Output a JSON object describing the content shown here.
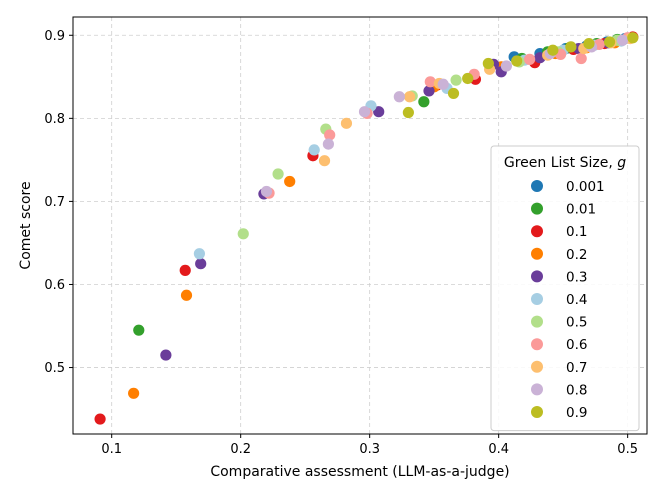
{
  "chart_data": {
    "type": "scatter",
    "xlabel": "Comparative assessment (LLM-as-a-judge)",
    "ylabel": "Comet score",
    "xlim": [
      0.07,
      0.515
    ],
    "ylim": [
      0.42,
      0.922
    ],
    "x_ticks": [
      0.1,
      0.2,
      0.3,
      0.4,
      0.5
    ],
    "x_tick_labels": [
      "0.1",
      "0.2",
      "0.3",
      "0.4",
      "0.5"
    ],
    "y_ticks": [
      0.5,
      0.6,
      0.7,
      0.8,
      0.9
    ],
    "y_tick_labels": [
      "0.5",
      "0.6",
      "0.7",
      "0.8",
      "0.9"
    ],
    "grid": true,
    "legend": {
      "title": "Green List Size, g",
      "title_prefix": "Green List Size, ",
      "title_var": "g",
      "placement": "right"
    },
    "series": [
      {
        "name": "0.001",
        "color": "#1f78b4",
        "points": [
          [
            0.412,
            0.874
          ],
          [
            0.432,
            0.878
          ],
          [
            0.452,
            0.884
          ],
          [
            0.468,
            0.887
          ],
          [
            0.484,
            0.892
          ],
          [
            0.498,
            0.896
          ]
        ]
      },
      {
        "name": "0.01",
        "color": "#33a02c",
        "points": [
          [
            0.121,
            0.545
          ],
          [
            0.342,
            0.82
          ],
          [
            0.418,
            0.872
          ],
          [
            0.438,
            0.88
          ],
          [
            0.455,
            0.885
          ],
          [
            0.476,
            0.89
          ],
          [
            0.492,
            0.895
          ]
        ]
      },
      {
        "name": "0.1",
        "color": "#e31a1c",
        "points": [
          [
            0.091,
            0.438
          ],
          [
            0.157,
            0.617
          ],
          [
            0.256,
            0.755
          ],
          [
            0.352,
            0.84
          ],
          [
            0.382,
            0.847
          ],
          [
            0.428,
            0.867
          ],
          [
            0.458,
            0.883
          ],
          [
            0.482,
            0.89
          ],
          [
            0.504,
            0.898
          ]
        ]
      },
      {
        "name": "0.2",
        "color": "#ff7f00",
        "points": [
          [
            0.117,
            0.469
          ],
          [
            0.158,
            0.587
          ],
          [
            0.238,
            0.724
          ],
          [
            0.35,
            0.838
          ],
          [
            0.402,
            0.862
          ],
          [
            0.444,
            0.878
          ],
          [
            0.468,
            0.885
          ],
          [
            0.49,
            0.891
          ]
        ]
      },
      {
        "name": "0.3",
        "color": "#6a3d9a",
        "points": [
          [
            0.142,
            0.515
          ],
          [
            0.169,
            0.625
          ],
          [
            0.218,
            0.709
          ],
          [
            0.307,
            0.808
          ],
          [
            0.346,
            0.833
          ],
          [
            0.396,
            0.865
          ],
          [
            0.402,
            0.856
          ],
          [
            0.432,
            0.873
          ],
          [
            0.462,
            0.884
          ],
          [
            0.485,
            0.891
          ]
        ]
      },
      {
        "name": "0.4",
        "color": "#a6cee3",
        "points": [
          [
            0.168,
            0.637
          ],
          [
            0.257,
            0.762
          ],
          [
            0.301,
            0.815
          ],
          [
            0.36,
            0.836
          ],
          [
            0.42,
            0.87
          ],
          [
            0.45,
            0.882
          ],
          [
            0.474,
            0.888
          ],
          [
            0.495,
            0.893
          ]
        ]
      },
      {
        "name": "0.5",
        "color": "#b2df8a",
        "points": [
          [
            0.202,
            0.661
          ],
          [
            0.229,
            0.733
          ],
          [
            0.266,
            0.787
          ],
          [
            0.333,
            0.827
          ],
          [
            0.367,
            0.846
          ],
          [
            0.416,
            0.868
          ],
          [
            0.446,
            0.88
          ],
          [
            0.47,
            0.887
          ],
          [
            0.492,
            0.894
          ]
        ]
      },
      {
        "name": "0.6",
        "color": "#fb9a99",
        "points": [
          [
            0.222,
            0.71
          ],
          [
            0.269,
            0.78
          ],
          [
            0.298,
            0.806
          ],
          [
            0.347,
            0.844
          ],
          [
            0.381,
            0.853
          ],
          [
            0.424,
            0.871
          ],
          [
            0.448,
            0.877
          ],
          [
            0.464,
            0.872
          ],
          [
            0.478,
            0.889
          ],
          [
            0.5,
            0.897
          ]
        ]
      },
      {
        "name": "0.7",
        "color": "#fdbf6f",
        "points": [
          [
            0.265,
            0.749
          ],
          [
            0.282,
            0.794
          ],
          [
            0.331,
            0.826
          ],
          [
            0.354,
            0.842
          ],
          [
            0.393,
            0.859
          ],
          [
            0.438,
            0.876
          ],
          [
            0.466,
            0.884
          ],
          [
            0.487,
            0.891
          ],
          [
            0.502,
            0.896
          ]
        ]
      },
      {
        "name": "0.8",
        "color": "#cab2d6",
        "points": [
          [
            0.22,
            0.712
          ],
          [
            0.268,
            0.769
          ],
          [
            0.296,
            0.808
          ],
          [
            0.323,
            0.826
          ],
          [
            0.357,
            0.841
          ],
          [
            0.406,
            0.863
          ],
          [
            0.44,
            0.878
          ],
          [
            0.472,
            0.886
          ],
          [
            0.496,
            0.894
          ]
        ]
      },
      {
        "name": "0.9",
        "color": "#bcbd22",
        "points": [
          [
            0.33,
            0.807
          ],
          [
            0.365,
            0.83
          ],
          [
            0.376,
            0.848
          ],
          [
            0.392,
            0.866
          ],
          [
            0.414,
            0.869
          ],
          [
            0.442,
            0.882
          ],
          [
            0.456,
            0.886
          ],
          [
            0.47,
            0.89
          ],
          [
            0.486,
            0.892
          ],
          [
            0.504,
            0.897
          ]
        ]
      }
    ]
  }
}
